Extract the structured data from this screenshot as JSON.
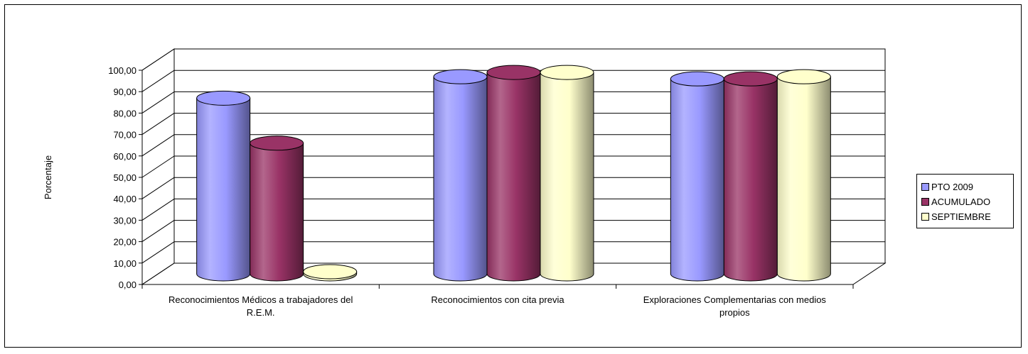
{
  "chart_data": {
    "type": "bar",
    "style": "3d-cylinder",
    "ylabel": "Porcentaje",
    "xlabel": "",
    "ylim": [
      0,
      100
    ],
    "ytick_step": 10,
    "ytick_labels": [
      "0,00",
      "10,00",
      "20,00",
      "30,00",
      "40,00",
      "50,00",
      "60,00",
      "70,00",
      "80,00",
      "90,00",
      "100,00"
    ],
    "grid": true,
    "legend_position": "right",
    "categories": [
      [
        "Reconocimientos Médicos a trabajadores del",
        "R.E.M."
      ],
      [
        "Reconocimientos con cita previa"
      ],
      [
        "Exploraciones Complementarias con medios",
        "propios"
      ]
    ],
    "series": [
      {
        "name": "PTO 2009",
        "color": "#9999FF",
        "values": [
          82,
          92,
          91
        ]
      },
      {
        "name": "ACUMULADO",
        "color": "#993366",
        "values": [
          61,
          94,
          91
        ]
      },
      {
        "name": "SEPTIEMBRE",
        "color": "#FFFFCC",
        "values": [
          1,
          94,
          92
        ]
      }
    ]
  }
}
